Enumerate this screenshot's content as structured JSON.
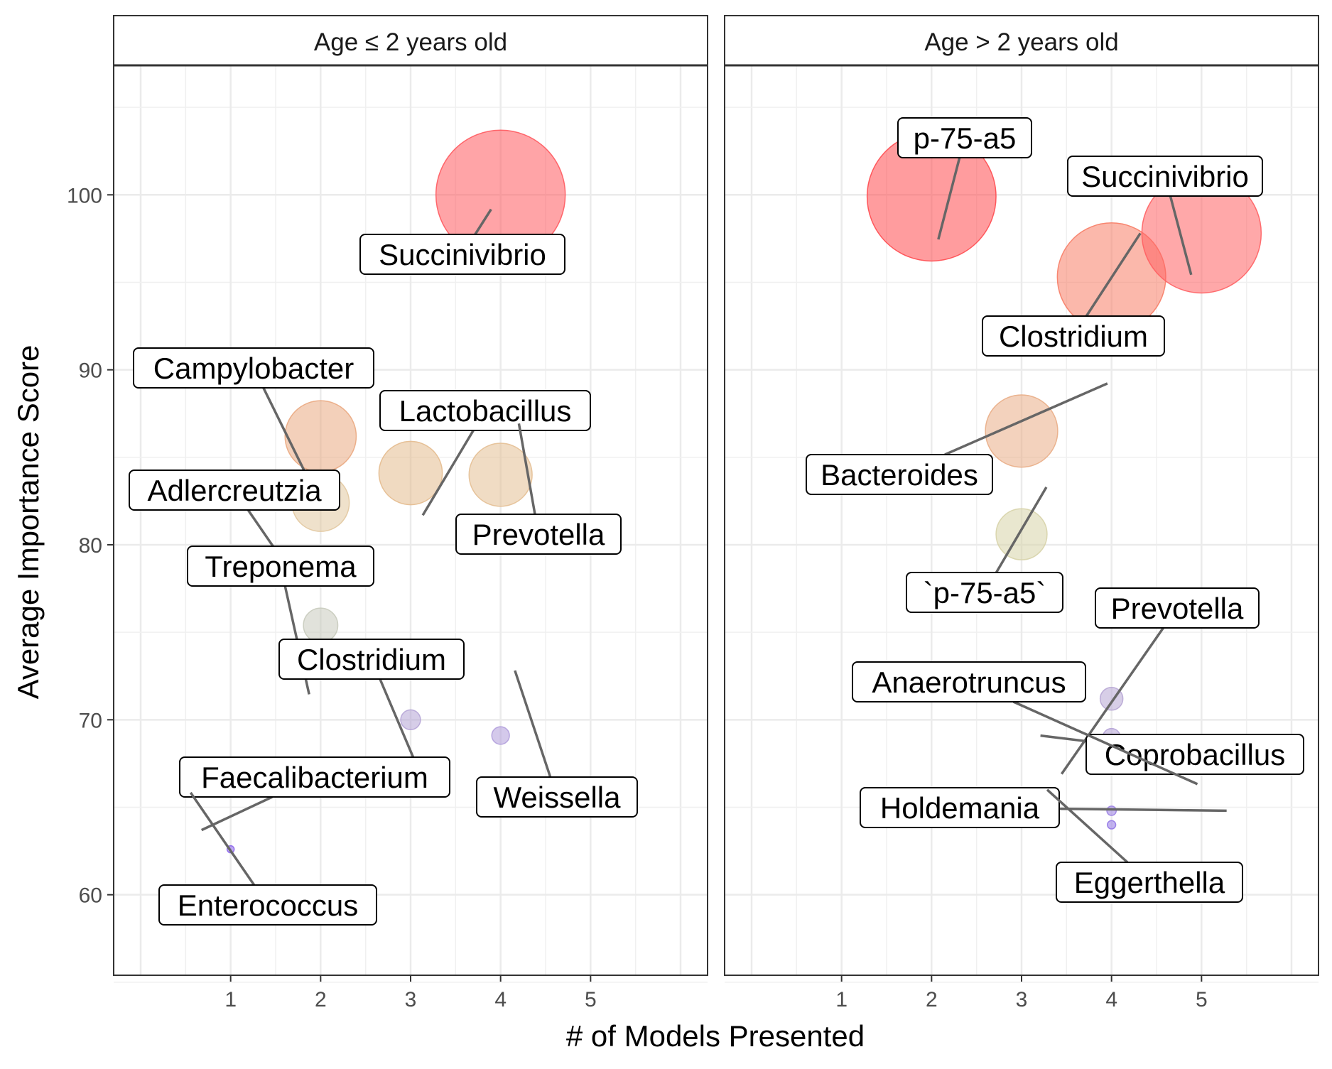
{
  "chart_data": {
    "type": "scatter",
    "xlabel": "# of Models Presented",
    "ylabel": "Average Importance Score",
    "x_ticks": [
      1,
      2,
      3,
      4,
      5
    ],
    "y_ticks": [
      60,
      70,
      80,
      90,
      100
    ],
    "xlim": [
      -0.3,
      6.3
    ],
    "ylim": [
      55.4,
      107.4
    ],
    "grid": true,
    "legend": "none",
    "encoding": "bubble size and color scale with importance score (purple = low, red = high)",
    "panels": [
      {
        "title": "Age ≤ 2 years old",
        "points": [
          {
            "label": "Succinivibrio",
            "x": 4,
            "y": 100.0,
            "color": "#ff5a5f"
          },
          {
            "label": "Campylobacter",
            "x": 2,
            "y": 86.2,
            "color": "#eaa981"
          },
          {
            "label": "Lactobacillus",
            "x": 3,
            "y": 84.1,
            "color": "#e4bb8e"
          },
          {
            "label": "Prevotella",
            "x": 4,
            "y": 84.0,
            "color": "#e4bf93"
          },
          {
            "label": "Adlercreutzia",
            "x": 2,
            "y": 82.4,
            "color": "#e2c8a0"
          },
          {
            "label": "Treponema",
            "x": 2,
            "y": 75.4,
            "color": "#c8cbbd"
          },
          {
            "label": "Clostridium",
            "x": 3,
            "y": 70.0,
            "color": "#b5a4d6"
          },
          {
            "label": "Weissella",
            "x": 4,
            "y": 69.1,
            "color": "#b09ddb"
          },
          {
            "label": "Faecalibacterium",
            "x": 1,
            "y": 66.0,
            "color": "#9f82e6"
          },
          {
            "label": "Enterococcus",
            "x": 1,
            "y": 62.6,
            "color": "#8a63ea"
          }
        ]
      },
      {
        "title": "Age > 2 years old",
        "points": [
          {
            "label": "p-75-a5",
            "x": 2,
            "y": 99.9,
            "color": "#ff4a4f"
          },
          {
            "label": "Succinivibrio",
            "x": 5,
            "y": 97.8,
            "color": "#ff6063"
          },
          {
            "label": "Clostridium",
            "x": 4,
            "y": 95.3,
            "color": "#f77d66"
          },
          {
            "label": "Bacteroides",
            "x": 3,
            "y": 86.5,
            "color": "#e9ad86"
          },
          {
            "label": "`p-75-a5`",
            "x": 3,
            "y": 80.6,
            "color": "#d7d3a8"
          },
          {
            "label": "Prevotella",
            "x": 4,
            "y": 71.2,
            "color": "#b7a6d4"
          },
          {
            "label": "Coprobacillus",
            "x": 4,
            "y": 67.6,
            "color": "#ab98da"
          },
          {
            "label": "Anaerotruncus",
            "x": 4,
            "y": 69.0,
            "color": "#b2a0d6"
          },
          {
            "label": "Holdemania",
            "x": 4,
            "y": 64.8,
            "color": "#9a7fe3"
          },
          {
            "label": "Eggerthella",
            "x": 4,
            "y": 64.0,
            "color": "#9478e6"
          }
        ]
      }
    ]
  }
}
